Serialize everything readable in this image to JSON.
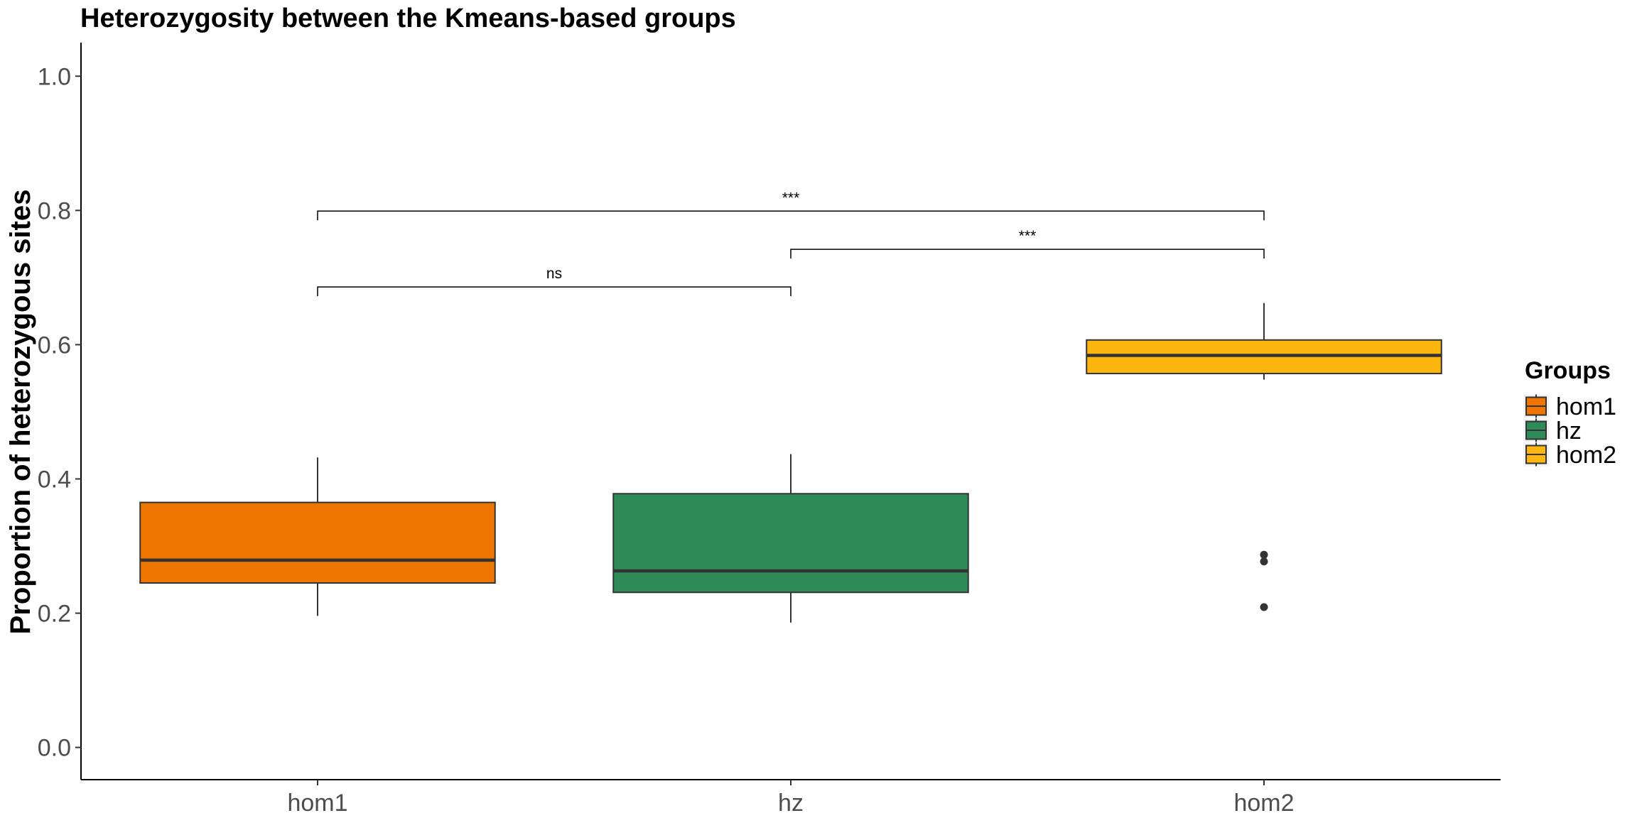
{
  "chart_data": {
    "type": "boxplot",
    "title": "Heterozygosity between the Kmeans-based groups",
    "xlabel": "",
    "ylabel": "Proportion of heterozygous sites",
    "ylim": [
      -0.048,
      1.05
    ],
    "yticks": [
      0.0,
      0.2,
      0.4,
      0.6,
      0.8,
      1.0
    ],
    "ytick_labels": [
      "0.0",
      "0.2",
      "0.4",
      "0.6",
      "0.8",
      "1.0"
    ],
    "categories": [
      "hom1",
      "hz",
      "hom2"
    ],
    "grid": false,
    "legend": {
      "title": "Groups",
      "placement": "right",
      "entries": [
        "hom1",
        "hz",
        "hom2"
      ]
    },
    "series": [
      {
        "name": "hom1",
        "color": "#EE7600",
        "whisker_low": 0.196,
        "q1": 0.245,
        "median": 0.279,
        "q3": 0.365,
        "whisker_high": 0.432,
        "outliers": []
      },
      {
        "name": "hz",
        "color": "#2E8B57",
        "whisker_low": 0.186,
        "q1": 0.231,
        "median": 0.263,
        "q3": 0.378,
        "whisker_high": 0.437,
        "outliers": []
      },
      {
        "name": "hom2",
        "color": "#FDB50F",
        "whisker_low": 0.548,
        "q1": 0.557,
        "median": 0.584,
        "q3": 0.607,
        "whisker_high": 0.662,
        "outliers": [
          0.287,
          0.277,
          0.209
        ]
      }
    ],
    "comparisons": [
      {
        "from": "hom1",
        "to": "hz",
        "label": "ns",
        "y": 0.686
      },
      {
        "from": "hz",
        "to": "hom2",
        "label": "***",
        "y": 0.742
      },
      {
        "from": "hom1",
        "to": "hom2",
        "label": "***",
        "y": 0.799
      }
    ]
  }
}
